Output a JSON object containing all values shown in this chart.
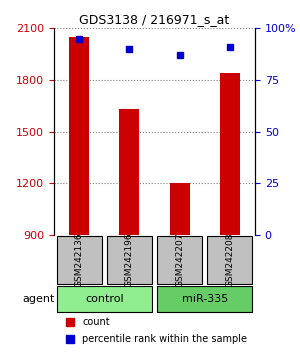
{
  "title": "GDS3138 / 216971_s_at",
  "samples": [
    "GSM242136",
    "GSM242196",
    "GSM242207",
    "GSM242208"
  ],
  "counts": [
    2050,
    1630,
    1200,
    1840
  ],
  "percentiles": [
    95,
    90,
    87,
    91
  ],
  "ylim_left": [
    900,
    2100
  ],
  "ylim_right": [
    0,
    100
  ],
  "yticks_left": [
    900,
    1200,
    1500,
    1800,
    2100
  ],
  "yticks_right": [
    0,
    25,
    50,
    75,
    100
  ],
  "bar_color": "#cc0000",
  "dot_color": "#0000cc",
  "bar_width": 0.4,
  "groups": [
    "control",
    "control",
    "miR-335",
    "miR-335"
  ],
  "group_labels": [
    "control",
    "miR-335"
  ],
  "group_colors": [
    "#90ee90",
    "#66cc66"
  ],
  "gray_color": "#c0c0c0",
  "legend_items": [
    {
      "label": "count",
      "color": "#cc0000"
    },
    {
      "label": "percentile rank within the sample",
      "color": "#0000cc"
    }
  ],
  "agent_label": "agent"
}
